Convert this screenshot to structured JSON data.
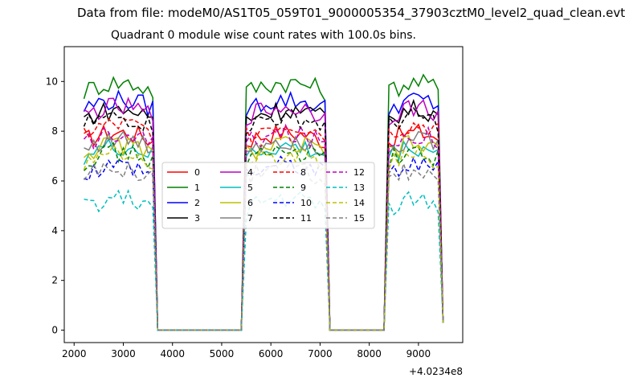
{
  "suptitle": "Data from file: modeM0/AS1T05_059T01_9000005354_37903cztM0_level2_quad_clean.evt",
  "chart_data": {
    "type": "line",
    "title": "Quadrant 0 module wise count rates with 100.0s bins.",
    "xlabel": "",
    "ylabel": "",
    "x_offset_label": "+4.0234e8",
    "xlim": [
      1800,
      9900
    ],
    "ylim": [
      -0.5,
      11.4
    ],
    "x_ticks": [
      2000,
      3000,
      4000,
      5000,
      6000,
      7000,
      8000,
      9000
    ],
    "y_ticks": [
      0,
      2,
      4,
      6,
      8,
      10
    ],
    "grid": false,
    "legend": {
      "placement": "center",
      "ncol": 4
    },
    "series": [
      {
        "name": "0",
        "color": "#ff0000",
        "dash": "solid",
        "level": 7.6
      },
      {
        "name": "1",
        "color": "#008000",
        "dash": "solid",
        "level": 9.6
      },
      {
        "name": "2",
        "color": "#0000ff",
        "dash": "solid",
        "level": 8.9
      },
      {
        "name": "3",
        "color": "#000000",
        "dash": "solid",
        "level": 8.5
      },
      {
        "name": "4",
        "color": "#bf00bf",
        "dash": "solid",
        "level": 8.6
      },
      {
        "name": "5",
        "color": "#00bfbf",
        "dash": "solid",
        "level": 7.0
      },
      {
        "name": "6",
        "color": "#bfbf00",
        "dash": "solid",
        "level": 7.1
      },
      {
        "name": "7",
        "color": "#808080",
        "dash": "solid",
        "level": 7.3
      },
      {
        "name": "8",
        "color": "#ff0000",
        "dash": "dashed",
        "level": 7.9
      },
      {
        "name": "9",
        "color": "#008000",
        "dash": "dashed",
        "level": 6.8
      },
      {
        "name": "10",
        "color": "#0000ff",
        "dash": "dashed",
        "level": 6.3
      },
      {
        "name": "11",
        "color": "#000000",
        "dash": "dashed",
        "level": 8.2
      },
      {
        "name": "12",
        "color": "#bf00bf",
        "dash": "dashed",
        "level": 7.5
      },
      {
        "name": "13",
        "color": "#00bfbf",
        "dash": "dashed",
        "level": 4.9
      },
      {
        "name": "14",
        "color": "#bfbf00",
        "dash": "dashed",
        "level": 6.7
      },
      {
        "name": "15",
        "color": "#808080",
        "dash": "dashed",
        "level": 6.1
      }
    ],
    "segments": [
      {
        "x_start": 2200,
        "x_end": 3600,
        "state": "on"
      },
      {
        "x_start": 3700,
        "x_end": 5400,
        "state": "zero"
      },
      {
        "x_start": 5500,
        "x_end": 7100,
        "state": "on"
      },
      {
        "x_start": 7200,
        "x_end": 8300,
        "state": "zero"
      },
      {
        "x_start": 8400,
        "x_end": 9500,
        "state": "on"
      }
    ]
  }
}
